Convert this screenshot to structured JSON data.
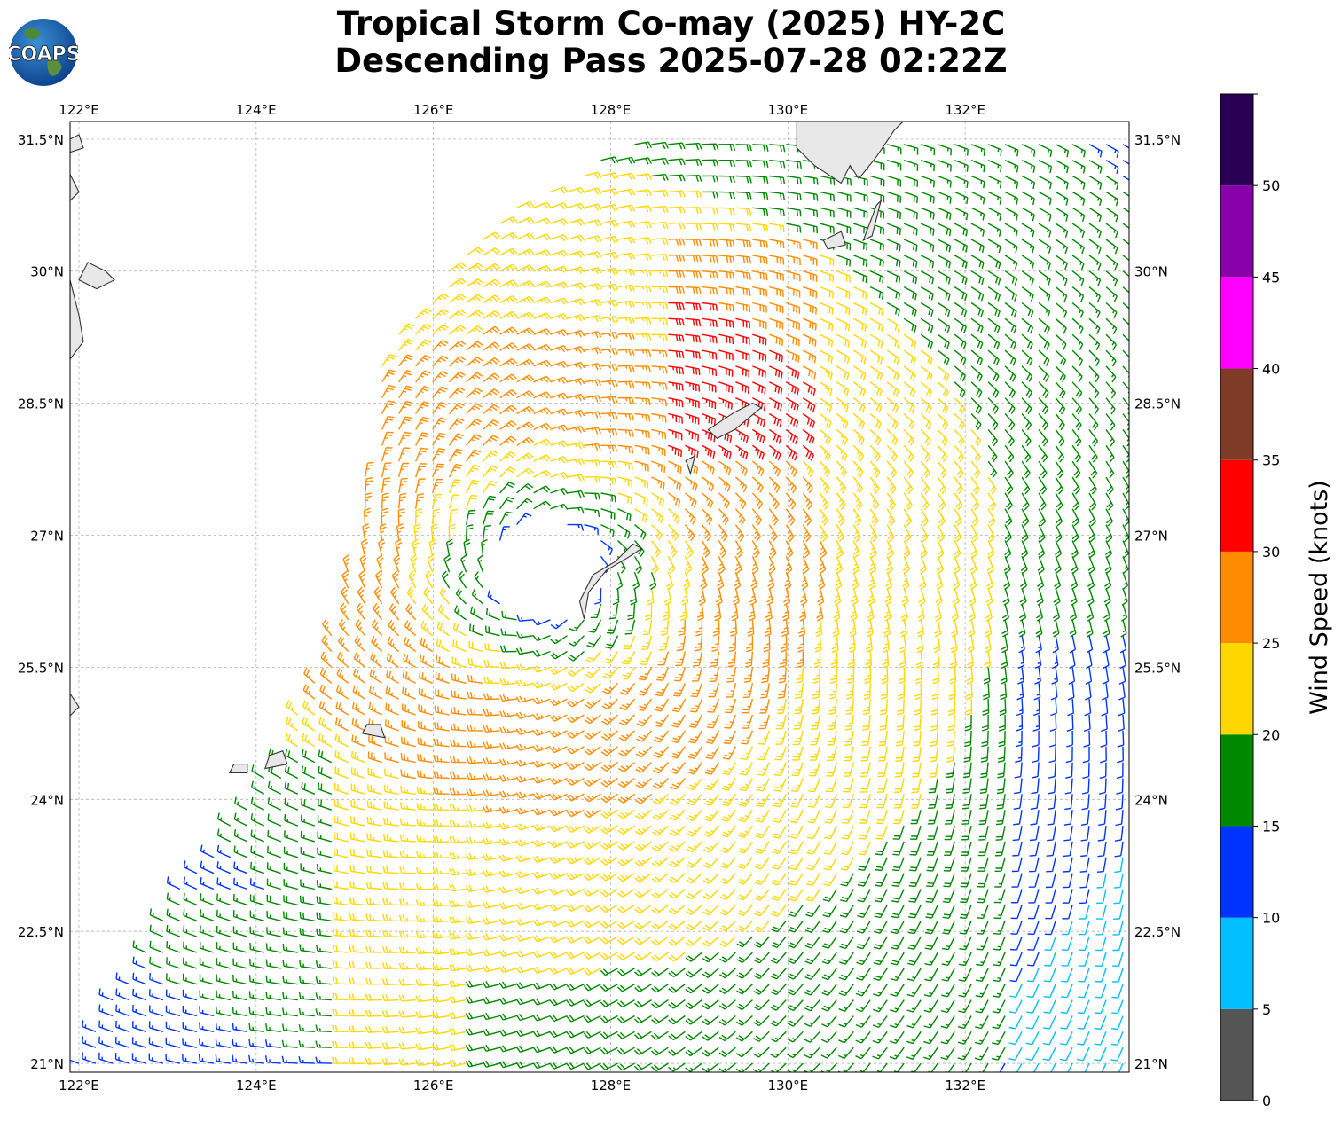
{
  "title": {
    "line1": "Tropical Storm Co-may (2025) HY-2C",
    "line2": "Descending Pass 2025-07-28 02:22Z"
  },
  "logo": {
    "text": "COAPS",
    "icon": "coaps-globe-logo"
  },
  "map": {
    "lon_range": [
      121.9,
      133.85
    ],
    "lat_range": [
      20.9,
      31.7
    ],
    "lon_ticks": [
      {
        "value": 122,
        "label": "122°E"
      },
      {
        "value": 124,
        "label": "124°E"
      },
      {
        "value": 126,
        "label": "126°E"
      },
      {
        "value": 128,
        "label": "128°E"
      },
      {
        "value": 130,
        "label": "130°E"
      },
      {
        "value": 132,
        "label": "132°E"
      }
    ],
    "lat_ticks": [
      {
        "value": 21,
        "label": "21°N"
      },
      {
        "value": 22.5,
        "label": "22.5°N"
      },
      {
        "value": 24,
        "label": "24°N"
      },
      {
        "value": 25.5,
        "label": "25.5°N"
      },
      {
        "value": 27,
        "label": "27°N"
      },
      {
        "value": 28.5,
        "label": "28.5°N"
      },
      {
        "value": 30,
        "label": "30°N"
      },
      {
        "value": 31.5,
        "label": "31.5°N"
      }
    ],
    "gridlines": true,
    "storm_center": {
      "lon": 127.3,
      "lat": 26.6
    },
    "swath_edge_lon_at_lat": [
      [
        20.9,
        121.9
      ],
      [
        22.8,
        123.0
      ],
      [
        24.4,
        124.2
      ],
      [
        26.0,
        124.9
      ],
      [
        27.5,
        125.2
      ],
      [
        29.0,
        125.4
      ],
      [
        30.5,
        126.5
      ],
      [
        31.7,
        128.6
      ]
    ]
  },
  "colorbar": {
    "label": "Wind Speed (knots)",
    "range": [
      0,
      55
    ],
    "bins": [
      {
        "min": 0,
        "max": 5,
        "color": "#555555"
      },
      {
        "min": 5,
        "max": 10,
        "color": "#00bfff"
      },
      {
        "min": 10,
        "max": 15,
        "color": "#0033ff"
      },
      {
        "min": 15,
        "max": 20,
        "color": "#008800"
      },
      {
        "min": 20,
        "max": 25,
        "color": "#ffd700"
      },
      {
        "min": 25,
        "max": 30,
        "color": "#ff8c00"
      },
      {
        "min": 30,
        "max": 35,
        "color": "#ff0000"
      },
      {
        "min": 35,
        "max": 40,
        "color": "#803a28"
      },
      {
        "min": 40,
        "max": 45,
        "color": "#ff00ff"
      },
      {
        "min": 45,
        "max": 50,
        "color": "#8800aa"
      },
      {
        "min": 50,
        "max": 55,
        "color": "#2a0055"
      }
    ],
    "tick_labels": [
      "0",
      "5",
      "10",
      "15",
      "20",
      "25",
      "30",
      "35",
      "40",
      "45",
      "50"
    ]
  },
  "land": [
    {
      "name": "okinawa",
      "lonlat": [
        [
          127.7,
          26.05
        ],
        [
          127.75,
          26.35
        ],
        [
          127.95,
          26.6
        ],
        [
          128.2,
          26.75
        ],
        [
          128.35,
          26.85
        ],
        [
          128.25,
          26.9
        ],
        [
          128.05,
          26.7
        ],
        [
          127.8,
          26.55
        ],
        [
          127.65,
          26.25
        ]
      ]
    },
    {
      "name": "amami",
      "lonlat": [
        [
          129.1,
          28.2
        ],
        [
          129.4,
          28.4
        ],
        [
          129.6,
          28.5
        ],
        [
          129.7,
          28.45
        ],
        [
          129.4,
          28.2
        ],
        [
          129.2,
          28.1
        ]
      ]
    },
    {
      "name": "tokunoshima",
      "lonlat": [
        [
          128.9,
          27.7
        ],
        [
          128.95,
          27.9
        ],
        [
          128.85,
          27.85
        ]
      ]
    },
    {
      "name": "yakushima",
      "lonlat": [
        [
          130.4,
          30.35
        ],
        [
          130.6,
          30.45
        ],
        [
          130.65,
          30.3
        ],
        [
          130.45,
          30.25
        ]
      ]
    },
    {
      "name": "tanegashima",
      "lonlat": [
        [
          130.85,
          30.35
        ],
        [
          131.0,
          30.75
        ],
        [
          131.05,
          30.8
        ],
        [
          130.95,
          30.4
        ]
      ]
    },
    {
      "name": "kyushu",
      "lonlat": [
        [
          130.1,
          31.4
        ],
        [
          130.3,
          31.2
        ],
        [
          130.6,
          31.0
        ],
        [
          130.7,
          31.2
        ],
        [
          130.8,
          31.05
        ],
        [
          131.0,
          31.3
        ],
        [
          131.2,
          31.6
        ],
        [
          131.3,
          31.7
        ],
        [
          130.1,
          31.7
        ]
      ]
    },
    {
      "name": "ishigaki",
      "lonlat": [
        [
          124.1,
          24.35
        ],
        [
          124.35,
          24.4
        ],
        [
          124.3,
          24.55
        ],
        [
          124.15,
          24.5
        ]
      ]
    },
    {
      "name": "miyako",
      "lonlat": [
        [
          125.2,
          24.75
        ],
        [
          125.45,
          24.7
        ],
        [
          125.4,
          24.85
        ],
        [
          125.25,
          24.85
        ]
      ]
    },
    {
      "name": "iriomote",
      "lonlat": [
        [
          123.7,
          24.3
        ],
        [
          123.9,
          24.3
        ],
        [
          123.9,
          24.4
        ],
        [
          123.75,
          24.4
        ]
      ]
    },
    {
      "name": "china-coast-1",
      "lonlat": [
        [
          121.9,
          31.5
        ],
        [
          122.0,
          31.55
        ],
        [
          122.05,
          31.4
        ],
        [
          121.9,
          31.35
        ]
      ]
    },
    {
      "name": "china-coast-2",
      "lonlat": [
        [
          121.9,
          31.1
        ],
        [
          122.0,
          30.9
        ],
        [
          121.9,
          30.8
        ]
      ]
    },
    {
      "name": "zhoushan",
      "lonlat": [
        [
          122.1,
          30.1
        ],
        [
          122.3,
          30.0
        ],
        [
          122.4,
          29.9
        ],
        [
          122.2,
          29.8
        ],
        [
          122.0,
          29.9
        ]
      ]
    },
    {
      "name": "china-coast-3",
      "lonlat": [
        [
          121.9,
          29.9
        ],
        [
          122.0,
          29.5
        ],
        [
          122.05,
          29.2
        ],
        [
          121.9,
          29.0
        ]
      ]
    },
    {
      "name": "taiwan-tip",
      "lonlat": [
        [
          121.9,
          25.2
        ],
        [
          122.0,
          25.05
        ],
        [
          121.9,
          24.95
        ]
      ]
    }
  ]
}
